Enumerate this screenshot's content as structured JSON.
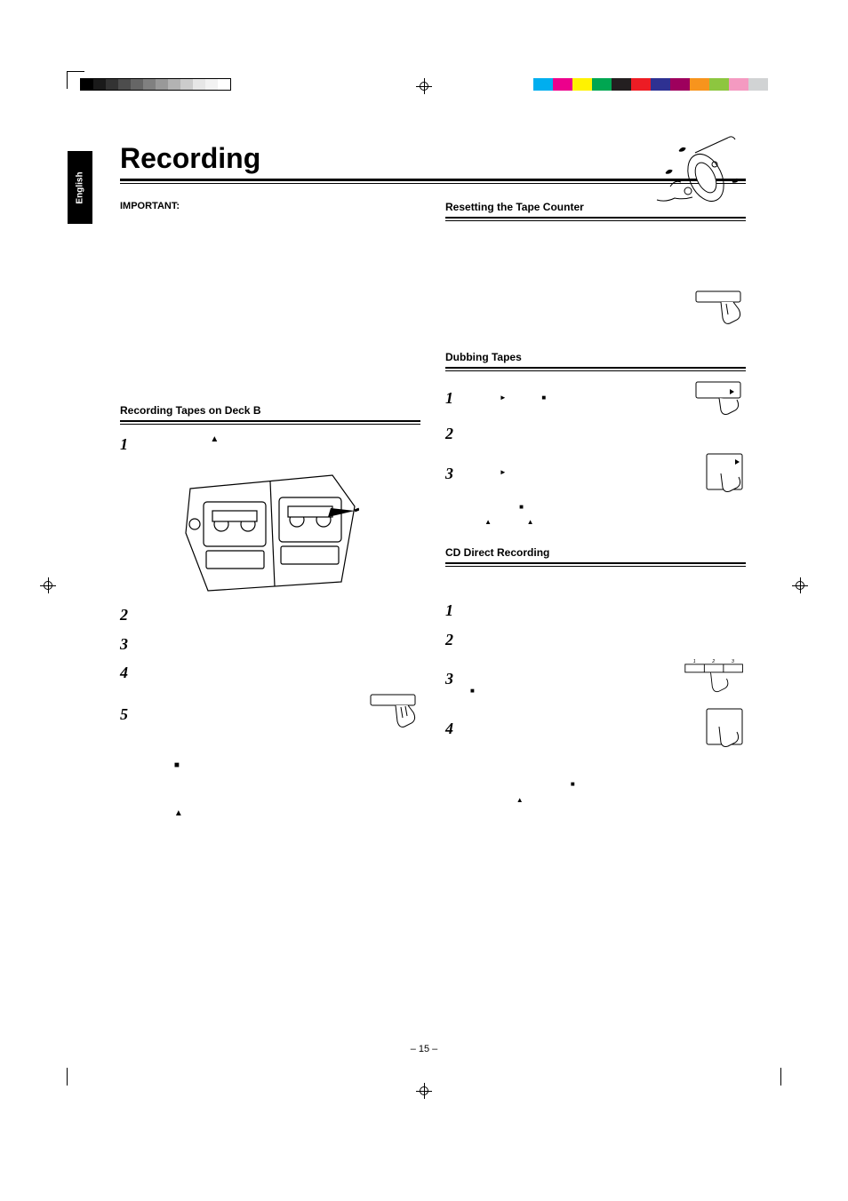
{
  "lang_tab": "English",
  "title": "Recording",
  "important_label": "IMPORTANT:",
  "page_number": "– 15 –",
  "colorbar": [
    "#00aeef",
    "#ec008c",
    "#fff200",
    "#00a651",
    "#231f20",
    "#ed1c24",
    "#2e3192",
    "#9e005d",
    "#f7941d",
    "#8dc63f",
    "#f49ac1",
    "#d1d3d4"
  ],
  "graybar": [
    "#000000",
    "#1a1a1a",
    "#333333",
    "#4d4d4d",
    "#666666",
    "#808080",
    "#999999",
    "#b3b3b3",
    "#cccccc",
    "#e6e6e6",
    "#f2f2f2",
    "#ffffff"
  ],
  "left": {
    "section_heading": "Recording Tapes on Deck B",
    "steps": {
      "s1": "1",
      "s2": "2",
      "s3": "3",
      "s4": "4",
      "s5": "5"
    }
  },
  "right": {
    "section_a": "Resetting the Tape Counter",
    "section_b": "Dubbing Tapes",
    "section_c": "CD Direct Recording",
    "dub_steps": {
      "s1": "1",
      "s2": "2",
      "s3": "3"
    },
    "cd_steps": {
      "s1": "1",
      "s2": "2",
      "s3": "3",
      "s4": "4"
    }
  },
  "icons": {
    "eject": "▲",
    "play": "►",
    "stop": "■"
  },
  "colors": {
    "text": "#000000",
    "bg": "#ffffff"
  }
}
